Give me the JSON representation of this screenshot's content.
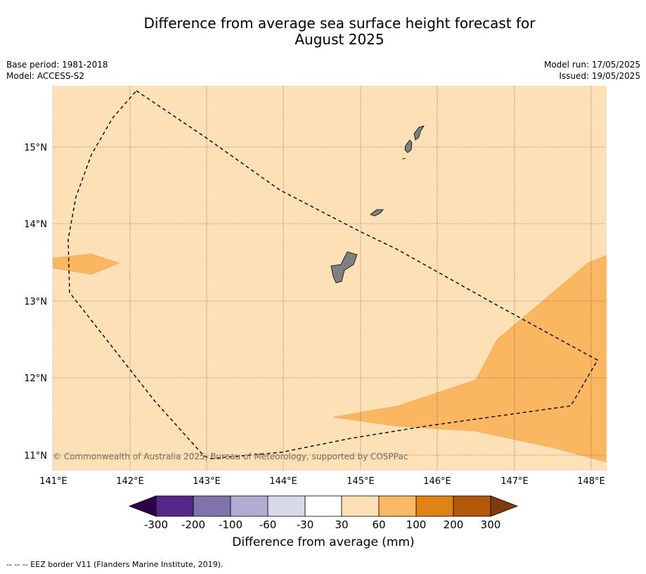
{
  "title_line1": "Difference from average sea surface height forecast for",
  "title_line2": "August 2025",
  "base_period": "Base period: 1981-2018",
  "model": "Model: ACCESS-S2",
  "model_run": "Model run: 17/05/2025",
  "issued": "Issued: 19/05/2025",
  "copyright": "© Commonwealth of Australia 2025, Bureau of Meteorology, supported by COSPPac",
  "lon_labels": [
    "141°E",
    "142°E",
    "143°E",
    "144°E",
    "145°E",
    "146°E",
    "147°E",
    "148°E"
  ],
  "lat_labels": [
    "15°N",
    "14°N",
    "13°N",
    "12°N",
    "11°N"
  ],
  "colorbar": {
    "title": "Difference from average (mm)",
    "ticks": [
      "-300",
      "-200",
      "-100",
      "-60",
      "-30",
      "30",
      "60",
      "100",
      "200",
      "300"
    ],
    "colors": {
      "below_min": "#2d004b",
      "bins": [
        "#542788",
        "#8073ac",
        "#b2abd2",
        "#d8daeb",
        "#ffffff",
        "#fee0b6",
        "#fdb863",
        "#e08214",
        "#b35806"
      ],
      "above_max": "#7f3b08"
    }
  },
  "map_colors": {
    "background_bin": "#fde0b6",
    "patch_bin": "#fab661",
    "land": "#808080"
  },
  "footnote": "--  --  -- EEZ border V11 (Flanders Marine Institute, 2019)."
}
